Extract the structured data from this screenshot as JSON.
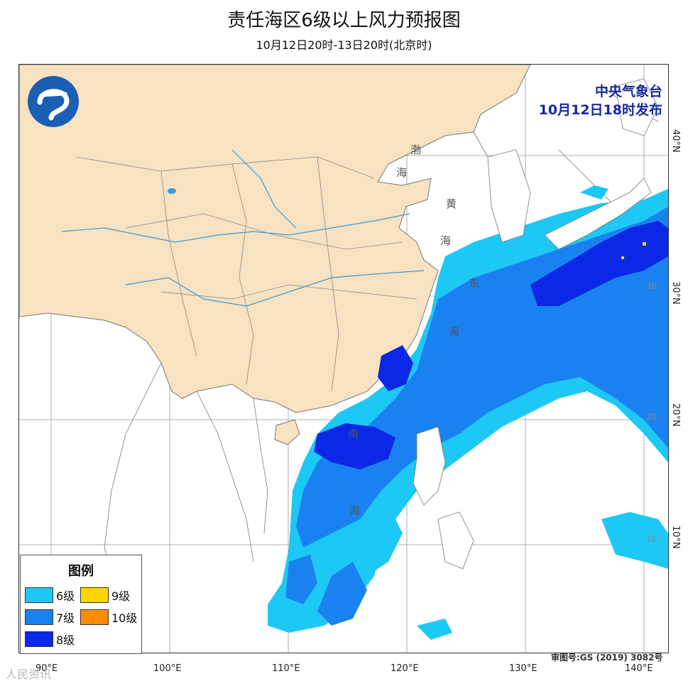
{
  "title": "责任海区6级以上风力预报图",
  "subtitle": "10月12日20时-13日20时(北京时)",
  "agency": {
    "name": "中央气象台",
    "issued": "10月12日18时发布"
  },
  "logo": {
    "icon": "cma-logo-icon"
  },
  "longitude_labels": [
    "90°E",
    "100°E",
    "110°E",
    "120°E",
    "130°E",
    "140°E"
  ],
  "latitude_labels": [
    "40°N",
    "30°N",
    "20°N",
    "10°N"
  ],
  "inner_lat_labels": [
    "30",
    "20",
    "10"
  ],
  "sea_names": {
    "bohai_1": "渤",
    "bohai_2": "海",
    "yellow_1": "黄",
    "yellow_2": "海",
    "east_1": "东",
    "east_2": "海",
    "south_1": "南",
    "south_2": "海"
  },
  "legend": {
    "title": "图例",
    "items": [
      {
        "label": "6级",
        "color": "#1ec8f5"
      },
      {
        "label": "9级",
        "color": "#ffd400"
      },
      {
        "label": "7级",
        "color": "#1a82f0"
      },
      {
        "label": "10级",
        "color": "#ff8c00"
      },
      {
        "label": "8级",
        "color": "#0a28e6"
      }
    ]
  },
  "review_number": "审图号:GS (2019) 3082号",
  "watermark": "人民资讯",
  "colors": {
    "china_land": "#f7e2c1",
    "wind_6": "#1ec8f5",
    "wind_7": "#1a82f0",
    "wind_8": "#0a28e6",
    "wind_9": "#ffd400",
    "river": "#3a9ad9"
  }
}
